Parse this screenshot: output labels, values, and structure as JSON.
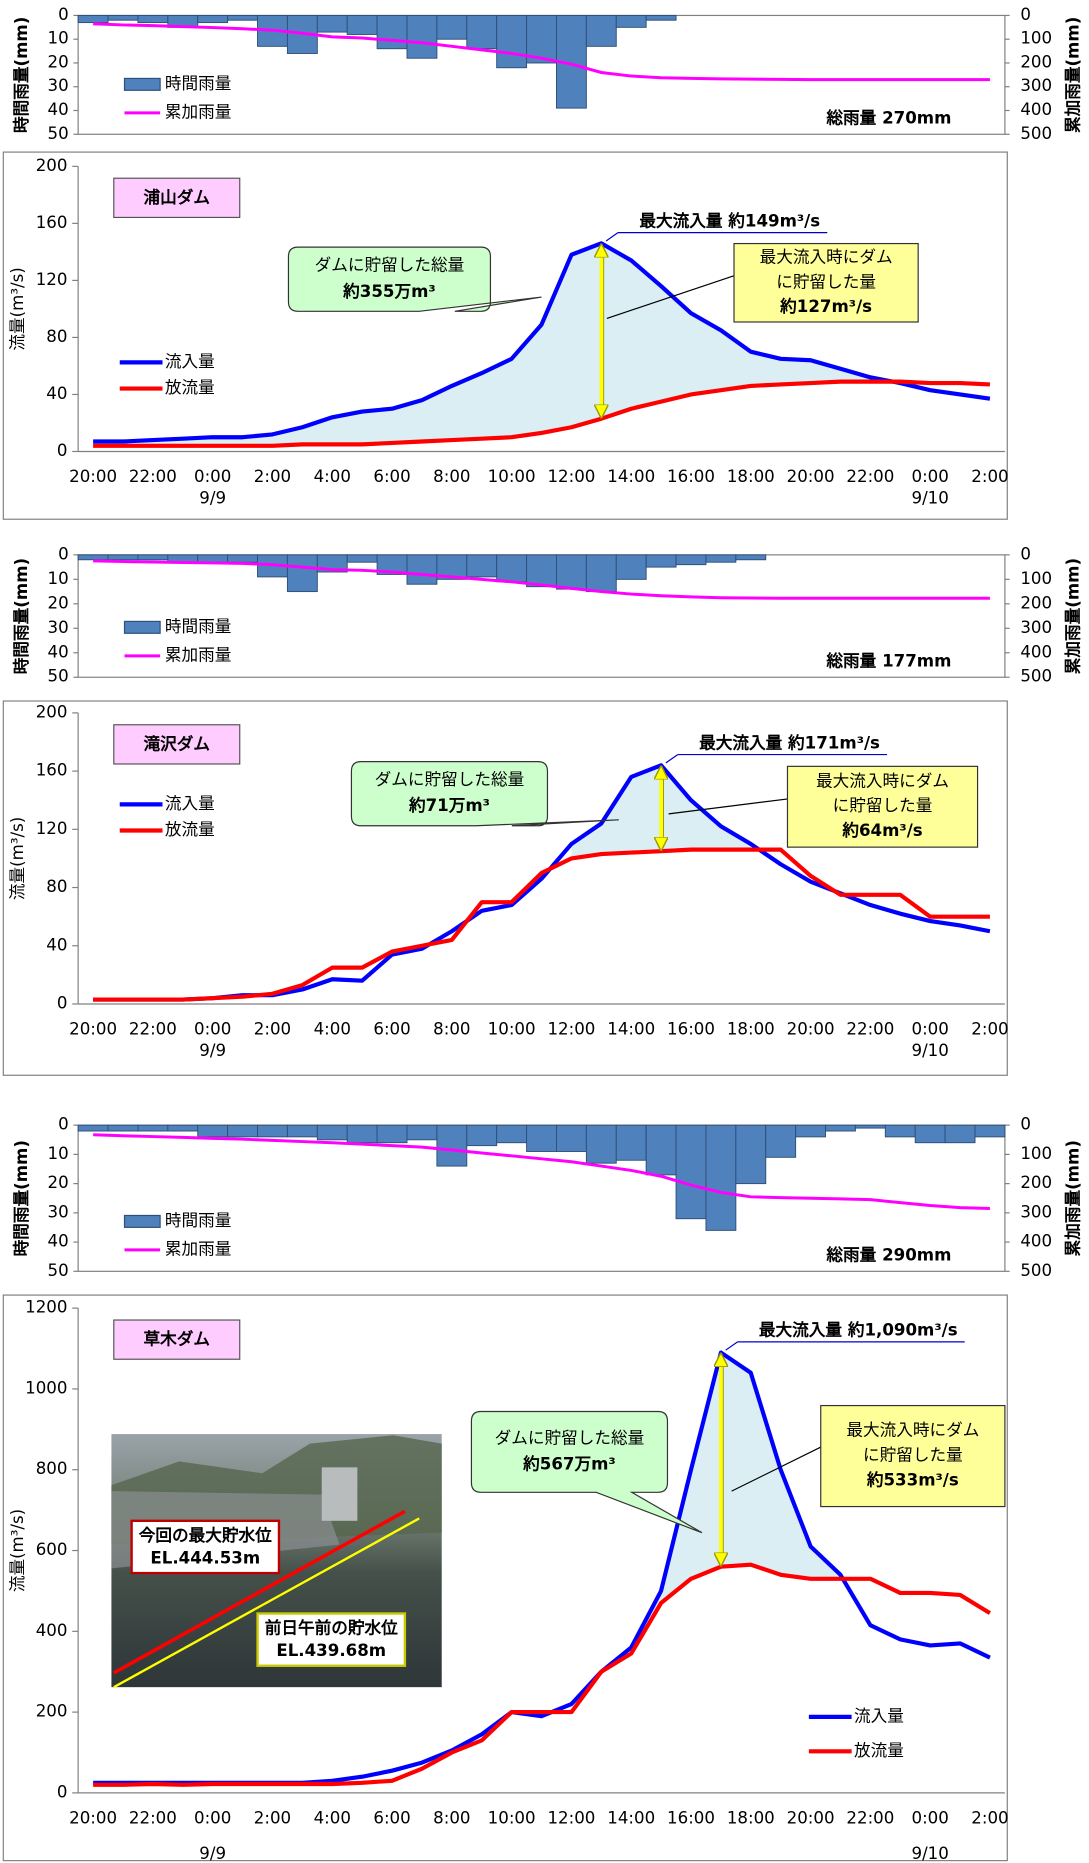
{
  "chart_data": [
    {
      "type": "bar",
      "legend": "left",
      "y_inverted": true,
      "ylabel": "時間雨量(mm)",
      "y2label": "累加雨量(mm)",
      "ylim": [
        0,
        50
      ],
      "yticks": [
        0,
        10,
        20,
        30,
        40,
        50
      ],
      "y2lim": [
        0,
        500
      ],
      "y2ticks": [
        0,
        100,
        200,
        300,
        400,
        500
      ],
      "total_rainfall": "総雨量 270mm",
      "series": [
        {
          "name": "時間雨量",
          "type": "bar",
          "color": "#4f81bd",
          "values": [
            3,
            2,
            3,
            5,
            3,
            2,
            13,
            16,
            7,
            8,
            14,
            18,
            10,
            14,
            22,
            20,
            39,
            13,
            5,
            2,
            0,
            0,
            0,
            0,
            0,
            0,
            0,
            0,
            0,
            0,
            0
          ]
        },
        {
          "name": "累加雨量",
          "type": "line",
          "axis": "y2",
          "color": "#ff00ff",
          "values": [
            35,
            40,
            43,
            47,
            51,
            56,
            62,
            75,
            90,
            95,
            105,
            115,
            130,
            145,
            160,
            180,
            205,
            240,
            255,
            262,
            265,
            267,
            268,
            269,
            270,
            270,
            270,
            270,
            270,
            270,
            270
          ]
        }
      ]
    },
    {
      "type": "line",
      "title": "浦山ダム",
      "legend": "center left",
      "ylabel": "流量(m³/s)",
      "ylim": [
        0,
        200
      ],
      "yticks": [
        0,
        40,
        80,
        120,
        160,
        200
      ],
      "categories": [
        "20:00",
        null,
        "22:00",
        null,
        "0:00",
        null,
        "2:00",
        null,
        "4:00",
        null,
        "6:00",
        null,
        "8:00",
        null,
        "10:00",
        null,
        "12:00",
        null,
        "14:00",
        null,
        "16:00",
        null,
        "18:00",
        null,
        "20:00",
        null,
        "22:00",
        null,
        "0:00",
        null,
        "2:00"
      ],
      "category_dates": [
        null,
        null,
        null,
        null,
        "9/9",
        null,
        null,
        null,
        null,
        null,
        null,
        null,
        null,
        null,
        null,
        null,
        null,
        null,
        null,
        null,
        null,
        null,
        null,
        null,
        null,
        null,
        null,
        null,
        "9/10",
        null,
        null
      ],
      "peak_label": "最大流入量 約149m³/s",
      "storage_total_lines": [
        "ダムに貯留した総量",
        "約355万m³"
      ],
      "storage_at_peak_lines": [
        "最大流入時にダム",
        "に貯留した量",
        "約127m³/s"
      ],
      "series": [
        {
          "name": "流入量",
          "color": "#0000ff",
          "values": [
            7,
            7,
            8,
            9,
            10,
            10,
            12,
            17,
            24,
            28,
            30,
            36,
            46,
            55,
            65,
            89,
            138,
            146,
            134,
            116,
            97,
            85,
            70,
            65,
            64,
            58,
            52,
            48,
            43,
            40,
            37
          ]
        },
        {
          "name": "放流量",
          "color": "#ff0000",
          "values": [
            4,
            4,
            4,
            4,
            4,
            4,
            4,
            5,
            5,
            5,
            6,
            7,
            8,
            9,
            10,
            13,
            17,
            23,
            30,
            35,
            40,
            43,
            46,
            47,
            48,
            49,
            49,
            49,
            48,
            48,
            47
          ]
        }
      ]
    },
    {
      "type": "bar",
      "legend": "left",
      "y_inverted": true,
      "ylabel": "時間雨量(mm)",
      "y2label": "累加雨量(mm)",
      "ylim": [
        0,
        50
      ],
      "yticks": [
        0,
        10,
        20,
        30,
        40,
        50
      ],
      "y2lim": [
        0,
        500
      ],
      "y2ticks": [
        0,
        100,
        200,
        300,
        400,
        500
      ],
      "total_rainfall": "総雨量 177mm",
      "series": [
        {
          "name": "時間雨量",
          "type": "bar",
          "color": "#4f81bd",
          "values": [
            2,
            2,
            2,
            3,
            3,
            3,
            9,
            15,
            7,
            3,
            8,
            12,
            10,
            9,
            11,
            13,
            14,
            15,
            10,
            5,
            4,
            3,
            2,
            0,
            0,
            0,
            0,
            0,
            0,
            0,
            0
          ]
        },
        {
          "name": "累加雨量",
          "type": "line",
          "axis": "y2",
          "color": "#ff00ff",
          "values": [
            25,
            27,
            29,
            31,
            33,
            35,
            40,
            50,
            60,
            63,
            70,
            80,
            90,
            100,
            110,
            123,
            137,
            150,
            160,
            167,
            172,
            175,
            176,
            177,
            177,
            177,
            177,
            177,
            177,
            177,
            177
          ]
        }
      ]
    },
    {
      "type": "line",
      "title": "滝沢ダム",
      "legend": "upper left",
      "ylabel": "流量(m³/s)",
      "ylim": [
        0,
        200
      ],
      "yticks": [
        0,
        40,
        80,
        120,
        160,
        200
      ],
      "categories": [
        "20:00",
        null,
        "22:00",
        null,
        "0:00",
        null,
        "2:00",
        null,
        "4:00",
        null,
        "6:00",
        null,
        "8:00",
        null,
        "10:00",
        null,
        "12:00",
        null,
        "14:00",
        null,
        "16:00",
        null,
        "18:00",
        null,
        "20:00",
        null,
        "22:00",
        null,
        "0:00",
        null,
        "2:00"
      ],
      "category_dates": [
        null,
        null,
        null,
        null,
        "9/9",
        null,
        null,
        null,
        null,
        null,
        null,
        null,
        null,
        null,
        null,
        null,
        null,
        null,
        null,
        null,
        null,
        null,
        null,
        null,
        null,
        null,
        null,
        null,
        "9/10",
        null,
        null
      ],
      "peak_label": "最大流入量 約171m³/s",
      "storage_total_lines": [
        "ダムに貯留した総量",
        "約71万m³"
      ],
      "storage_at_peak_lines": [
        "最大流入時にダム",
        "に貯留した量",
        "約64m³/s"
      ],
      "series": [
        {
          "name": "流入量",
          "color": "#0000ff",
          "values": [
            3,
            3,
            3,
            3,
            4,
            6,
            6,
            10,
            17,
            16,
            34,
            38,
            50,
            64,
            68,
            86,
            110,
            124,
            156,
            164,
            140,
            122,
            110,
            96,
            84,
            76,
            68,
            62,
            57,
            54,
            50
          ]
        },
        {
          "name": "放流量",
          "color": "#ff0000",
          "values": [
            3,
            3,
            3,
            3,
            4,
            5,
            7,
            13,
            25,
            25,
            36,
            40,
            44,
            70,
            70,
            90,
            100,
            103,
            104,
            105,
            106,
            106,
            106,
            106,
            88,
            75,
            75,
            75,
            60,
            60,
            60
          ]
        }
      ]
    },
    {
      "type": "bar",
      "legend": "left",
      "y_inverted": true,
      "ylabel": "時間雨量(mm)",
      "y2label": "累加雨量(mm)",
      "ylim": [
        0,
        50
      ],
      "yticks": [
        0,
        10,
        20,
        30,
        40,
        50
      ],
      "y2lim": [
        0,
        500
      ],
      "y2ticks": [
        0,
        100,
        200,
        300,
        400,
        500
      ],
      "total_rainfall": "総雨量 290mm",
      "series": [
        {
          "name": "時間雨量",
          "type": "bar",
          "color": "#4f81bd",
          "values": [
            2,
            2,
            2,
            2,
            4,
            4,
            4,
            4,
            5,
            6,
            6,
            5,
            14,
            7,
            6,
            9,
            9,
            13,
            12,
            17,
            32,
            36,
            20,
            11,
            4,
            2,
            1,
            4,
            6,
            6,
            4
          ]
        },
        {
          "name": "累加雨量",
          "type": "line",
          "axis": "y2",
          "color": "#ff00ff",
          "values": [
            33,
            36,
            39,
            42,
            45,
            48,
            52,
            56,
            60,
            65,
            70,
            75,
            85,
            95,
            105,
            115,
            125,
            140,
            155,
            175,
            205,
            230,
            245,
            248,
            250,
            252,
            255,
            265,
            275,
            282,
            285
          ]
        }
      ]
    },
    {
      "type": "line",
      "title": "草木ダム",
      "legend": "lower right",
      "ylabel": "流量(m³/s)",
      "ylim": [
        0,
        1200
      ],
      "yticks": [
        0,
        200,
        400,
        600,
        800,
        1000,
        1200
      ],
      "categories": [
        "20:00",
        null,
        "22:00",
        null,
        "0:00",
        null,
        "2:00",
        null,
        "4:00",
        null,
        "6:00",
        null,
        "8:00",
        null,
        "10:00",
        null,
        "12:00",
        null,
        "14:00",
        null,
        "16:00",
        null,
        "18:00",
        null,
        "20:00",
        null,
        "22:00",
        null,
        "0:00",
        null,
        "2:00"
      ],
      "category_dates": [
        null,
        null,
        null,
        null,
        "9/9",
        null,
        null,
        null,
        null,
        null,
        null,
        null,
        null,
        null,
        null,
        null,
        null,
        null,
        null,
        null,
        null,
        null,
        null,
        null,
        null,
        null,
        null,
        null,
        "9/10",
        null,
        null
      ],
      "peak_label": "最大流入量 約1,090m³/s",
      "storage_total_lines": [
        "ダムに貯留した総量",
        "約567万m³"
      ],
      "storage_at_peak_lines": [
        "最大流入時にダム",
        "に貯留した量",
        "約533m³/s"
      ],
      "photo_labels": [
        [
          "今回の最大貯水位",
          "EL.444.53m"
        ],
        [
          "前日午前の貯水位",
          "EL.439.68m"
        ]
      ],
      "series": [
        {
          "name": "流入量",
          "color": "#0000ff",
          "values": [
            25,
            25,
            25,
            25,
            25,
            25,
            25,
            25,
            30,
            40,
            55,
            75,
            105,
            145,
            200,
            190,
            220,
            300,
            360,
            500,
            800,
            1090,
            1040,
            800,
            610,
            540,
            415,
            380,
            365,
            370,
            335
          ]
        },
        {
          "name": "放流量",
          "color": "#ff0000",
          "values": [
            20,
            20,
            22,
            20,
            22,
            22,
            22,
            22,
            22,
            25,
            30,
            60,
            100,
            130,
            200,
            200,
            200,
            300,
            345,
            470,
            530,
            560,
            565,
            540,
            530,
            530,
            530,
            495,
            495,
            490,
            445
          ]
        }
      ]
    }
  ]
}
